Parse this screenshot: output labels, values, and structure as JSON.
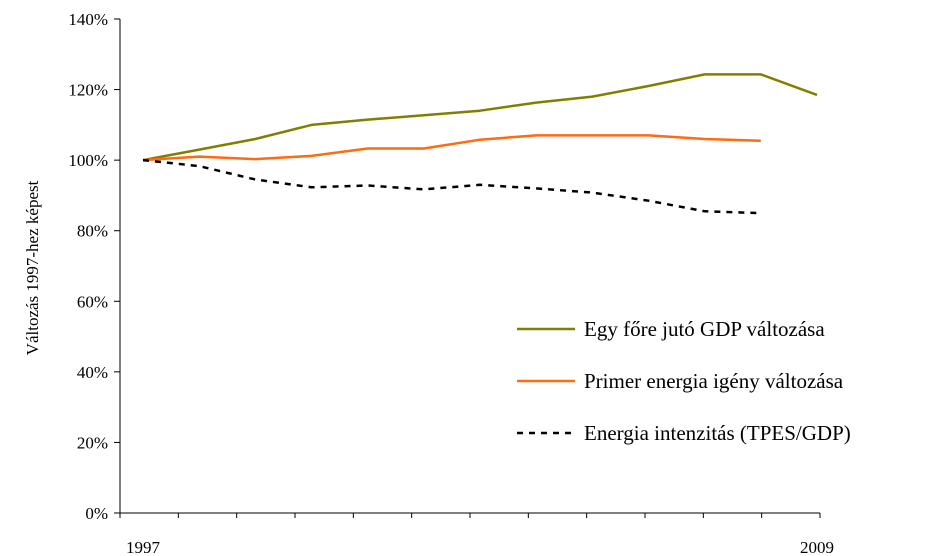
{
  "chart_data": {
    "type": "line",
    "ylabel": "Változás 1997-hez képest",
    "xlabel": "",
    "x": [
      1997,
      1998,
      1999,
      2000,
      2001,
      2002,
      2003,
      2004,
      2005,
      2006,
      2007,
      2008,
      2009
    ],
    "x_tick_labels": [
      "1997",
      "2009"
    ],
    "ylim": [
      0,
      140
    ],
    "y_ticks": [
      0,
      20,
      40,
      60,
      80,
      100,
      120,
      140
    ],
    "y_tick_labels": [
      "0%",
      "20%",
      "40%",
      "60%",
      "80%",
      "100%",
      "120%",
      "140%"
    ],
    "y_unit": "%",
    "grid": false,
    "legend_position": "lower-right",
    "series": [
      {
        "name": "Egy főre jutó GDP változása",
        "color": "#808000",
        "style": "solid",
        "values": [
          100,
          103,
          106,
          110,
          111.5,
          112.7,
          114,
          116.3,
          118,
          121,
          124.3,
          124.3,
          118.5
        ]
      },
      {
        "name": "Primer energia igény változása",
        "color": "#ff6a13",
        "style": "solid",
        "values": [
          100,
          101,
          100.3,
          101.2,
          103.3,
          103.3,
          105.8,
          107,
          107,
          107,
          106,
          105.5,
          null
        ]
      },
      {
        "name": "Energia intenzitás (TPES/GDP)",
        "color": "#000000",
        "style": "dashed",
        "values": [
          100,
          98.3,
          94.5,
          92.3,
          92.8,
          91.7,
          93,
          92,
          90.8,
          88.5,
          85.5,
          85,
          null
        ]
      }
    ]
  }
}
